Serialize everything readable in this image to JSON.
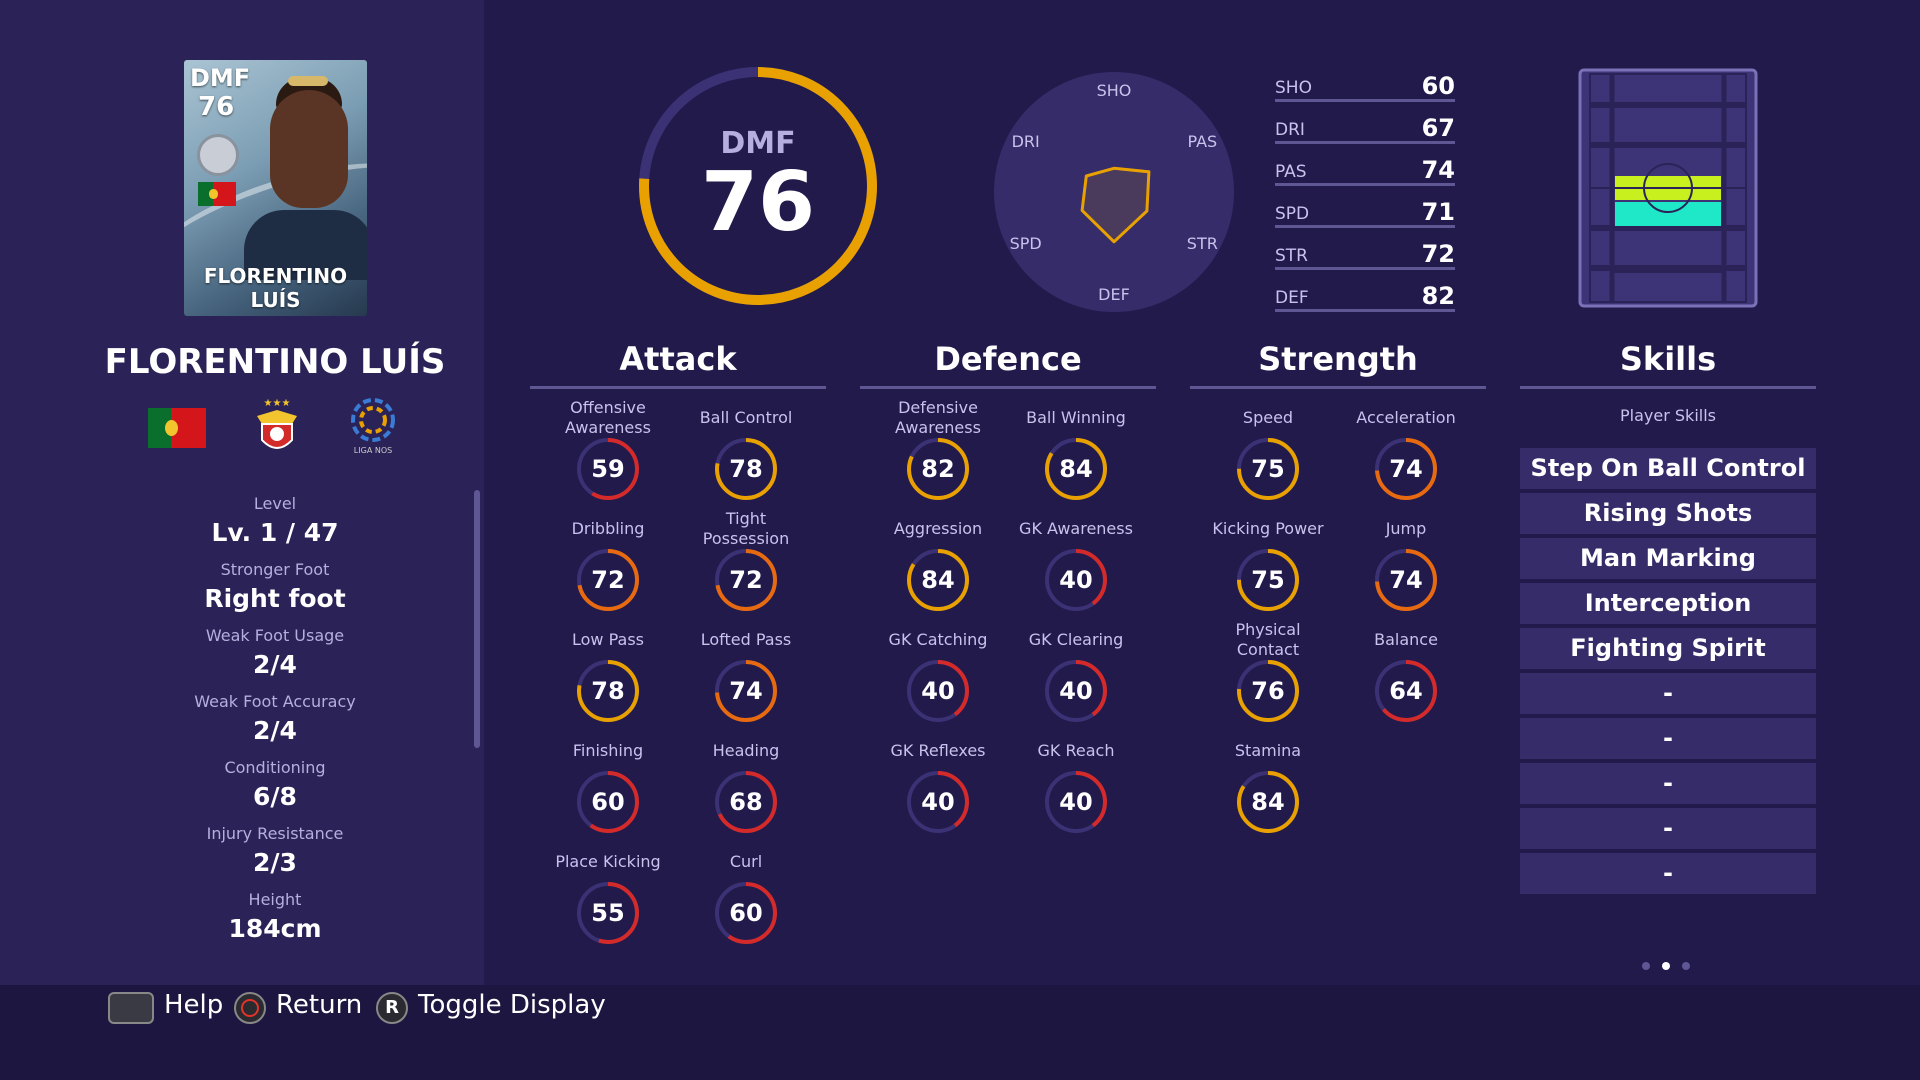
{
  "player": {
    "card_position": "DMF",
    "card_rating": "76",
    "card_name": "FLORENTINO LUÍS",
    "name": "FLORENTINO LUÍS",
    "league_logo_text": "LIGA NOS"
  },
  "info": [
    {
      "label": "Level",
      "value": "Lv. 1 / 47"
    },
    {
      "label": "Stronger Foot",
      "value": "Right foot"
    },
    {
      "label": "Weak Foot Usage",
      "value": "2/4"
    },
    {
      "label": "Weak Foot Accuracy",
      "value": "2/4"
    },
    {
      "label": "Conditioning",
      "value": "6/8"
    },
    {
      "label": "Injury Resistance",
      "value": "2/3"
    },
    {
      "label": "Height",
      "value": "184cm"
    }
  ],
  "overall": {
    "position": "DMF",
    "rating": "76",
    "ring_fraction": 0.76,
    "ring_color": "#e8a100"
  },
  "radar": {
    "labels": [
      "SHO",
      "PAS",
      "STR",
      "DEF",
      "SPD",
      "DRI"
    ],
    "values": [
      60,
      74,
      72,
      82,
      71,
      67
    ],
    "range": [
      40,
      99
    ]
  },
  "summary_stats": [
    {
      "name": "SHO",
      "value": "60"
    },
    {
      "name": "DRI",
      "value": "67"
    },
    {
      "name": "PAS",
      "value": "74"
    },
    {
      "name": "SPD",
      "value": "71"
    },
    {
      "name": "STR",
      "value": "72"
    },
    {
      "name": "DEF",
      "value": "82"
    }
  ],
  "sections": {
    "attack": {
      "title": "Attack",
      "attrs": [
        {
          "name": "Offensive\nAwareness",
          "value": "59"
        },
        {
          "name": "Ball Control",
          "value": "78"
        },
        {
          "name": "Dribbling",
          "value": "72"
        },
        {
          "name": "Tight\nPossession",
          "value": "72"
        },
        {
          "name": "Low Pass",
          "value": "78"
        },
        {
          "name": "Lofted Pass",
          "value": "74"
        },
        {
          "name": "Finishing",
          "value": "60"
        },
        {
          "name": "Heading",
          "value": "68"
        },
        {
          "name": "Place Kicking",
          "value": "55"
        },
        {
          "name": "Curl",
          "value": "60"
        }
      ]
    },
    "defence": {
      "title": "Defence",
      "attrs": [
        {
          "name": "Defensive\nAwareness",
          "value": "82"
        },
        {
          "name": "Ball Winning",
          "value": "84"
        },
        {
          "name": "Aggression",
          "value": "84"
        },
        {
          "name": "GK Awareness",
          "value": "40"
        },
        {
          "name": "GK Catching",
          "value": "40"
        },
        {
          "name": "GK Clearing",
          "value": "40"
        },
        {
          "name": "GK Reflexes",
          "value": "40"
        },
        {
          "name": "GK Reach",
          "value": "40"
        }
      ]
    },
    "strength": {
      "title": "Strength",
      "attrs": [
        {
          "name": "Speed",
          "value": "75"
        },
        {
          "name": "Acceleration",
          "value": "74"
        },
        {
          "name": "Kicking Power",
          "value": "75"
        },
        {
          "name": "Jump",
          "value": "74"
        },
        {
          "name": "Physical\nContact",
          "value": "76"
        },
        {
          "name": "Balance",
          "value": "64"
        },
        {
          "name": "Stamina",
          "value": "84"
        }
      ]
    },
    "skills": {
      "title": "Skills",
      "subtitle": "Player Skills",
      "items": [
        "Step On Ball Control",
        "Rising Shots",
        "Man Marking",
        "Interception",
        "Fighting Spirit",
        "-",
        "-",
        "-",
        "-",
        "-"
      ]
    }
  },
  "pitch": {
    "highlight_colors": [
      "#c8f01e",
      "#1ee8c8"
    ]
  },
  "pager": {
    "count": 3,
    "active": 1
  },
  "hints": [
    {
      "icon": "square-button-icon",
      "label": "Help"
    },
    {
      "icon": "circle-button-icon",
      "label": "Return"
    },
    {
      "icon": "r-stick-button-icon",
      "label": "Toggle Display",
      "glyph": "R"
    }
  ],
  "colors": {
    "gold": "#e8a100",
    "red": "#d42a2a",
    "orange": "#e86a10",
    "track": "#3b3275"
  }
}
